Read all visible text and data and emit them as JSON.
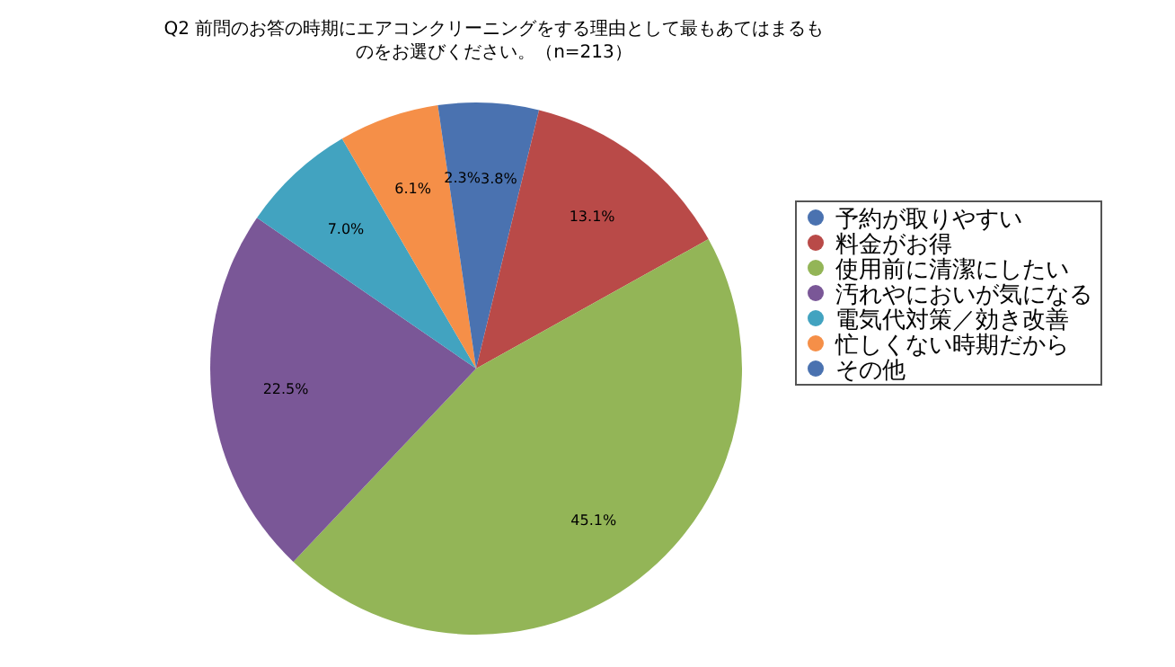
{
  "chart_data": {
    "type": "pie",
    "title": "Q2 前問のお答の時期にエアコンクリーニングをする理由として最もあてはまるものをお選びください。（n=213）",
    "categories": [
      "予約が取りやすい",
      "料金がお得",
      "使用前に清潔にしたい",
      "汚れやにおいが気になる",
      "電気代対策／効き改善",
      "忙しくない時期だから",
      "その他"
    ],
    "values": [
      3.8,
      13.1,
      45.1,
      22.5,
      7.0,
      6.1,
      2.3
    ],
    "value_labels": [
      "3.8%",
      "13.1%",
      "45.1%",
      "22.5%",
      "7.0%",
      "6.1%",
      "2.3%"
    ],
    "colors": [
      "#4a72b0",
      "#b94a48",
      "#93b557",
      "#7a5797",
      "#42a3c0",
      "#f58f48",
      "#4a72b0"
    ],
    "legend": "right"
  }
}
